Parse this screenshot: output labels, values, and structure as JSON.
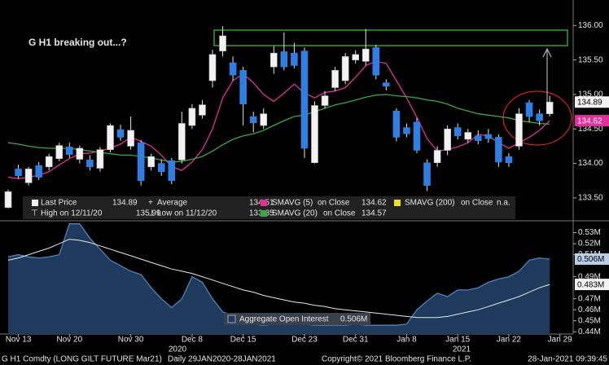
{
  "chart_data": [
    {
      "type": "candlestick",
      "title": "G H1 breaking out...?",
      "categories": [
        null,
        "Nov 13",
        null,
        null,
        null,
        null,
        "Nov 20",
        null,
        null,
        null,
        null,
        null,
        "Nov 30",
        null,
        null,
        null,
        null,
        null,
        "Dec 8",
        null,
        null,
        null,
        null,
        "Dec 15",
        null,
        null,
        null,
        null,
        null,
        "Dec 23",
        null,
        null,
        null,
        null,
        "Dec 31",
        null,
        null,
        null,
        null,
        "Jan 8",
        null,
        null,
        null,
        null,
        "Jan 15",
        null,
        null,
        null,
        null,
        "Jan 22",
        null,
        null,
        null,
        null,
        "Jan 29"
      ],
      "year_labels": [
        "2020",
        "2021"
      ],
      "open": [
        133.36,
        133.92,
        133.72,
        133.97,
        133.95,
        134.07,
        134.24,
        134.06,
        134.05,
        133.93,
        134.2,
        134.49,
        134.25,
        134.3,
        133.95,
        134.0,
        134.04,
        134.05,
        134.55,
        134.7,
        135.2,
        135.63,
        135.46,
        135.35,
        134.68,
        134.55,
        135.4,
        135.62,
        135.6,
        135.63,
        134.01,
        134.84,
        135.1,
        135.2,
        135.5,
        135.48,
        135.68,
        135.17,
        134.76,
        134.52,
        134.6,
        134.01,
        134.01,
        134.19,
        134.52,
        134.35,
        134.4,
        134.42,
        134.38,
        134.1,
        134.25,
        134.88,
        134.72,
        134.72,
        null
      ],
      "high": [
        133.62,
        133.98,
        133.95,
        134.02,
        134.14,
        134.3,
        134.3,
        134.26,
        134.12,
        134.24,
        134.58,
        134.56,
        134.68,
        134.34,
        134.14,
        134.06,
        134.08,
        134.75,
        134.86,
        134.92,
        135.65,
        135.99,
        135.55,
        135.4,
        134.75,
        134.8,
        135.7,
        135.9,
        135.75,
        135.68,
        134.9,
        135.05,
        135.4,
        135.6,
        135.64,
        135.95,
        135.72,
        135.22,
        134.8,
        134.58,
        134.66,
        134.06,
        134.25,
        134.55,
        134.58,
        134.5,
        134.48,
        134.5,
        134.42,
        134.15,
        134.8,
        134.92,
        134.78,
        134.98,
        null
      ],
      "low": [
        133.35,
        133.78,
        133.68,
        133.76,
        133.9,
        134.03,
        134.08,
        134.0,
        133.9,
        133.88,
        134.16,
        134.33,
        134.2,
        133.68,
        133.9,
        133.82,
        133.7,
        134.0,
        134.5,
        134.65,
        135.1,
        135.55,
        135.2,
        134.55,
        134.45,
        134.5,
        135.3,
        135.35,
        135.38,
        134.08,
        134.0,
        134.8,
        135.05,
        135.15,
        135.45,
        135.42,
        135.22,
        135.06,
        134.32,
        134.38,
        134.15,
        133.6,
        133.95,
        134.12,
        134.35,
        134.3,
        134.28,
        134.3,
        133.95,
        133.95,
        134.2,
        134.6,
        134.55,
        134.68,
        null
      ],
      "close": [
        133.59,
        133.82,
        133.92,
        133.8,
        134.1,
        134.26,
        134.13,
        134.22,
        133.95,
        134.2,
        134.55,
        134.38,
        134.48,
        133.75,
        134.1,
        133.88,
        133.75,
        134.58,
        134.8,
        134.85,
        135.58,
        135.85,
        135.28,
        134.86,
        134.59,
        134.72,
        135.6,
        135.4,
        135.42,
        134.22,
        134.84,
        134.98,
        135.35,
        135.55,
        135.58,
        135.66,
        135.28,
        135.12,
        134.38,
        134.43,
        134.19,
        133.68,
        134.19,
        134.5,
        134.4,
        134.45,
        134.33,
        134.36,
        134.02,
        134.01,
        134.72,
        134.68,
        134.62,
        134.89,
        null
      ],
      "up_color": "#f2f2f2",
      "down_color": "#2f7fe3",
      "series": [
        {
          "name": "SMAVG (5)",
          "basis": "on Close",
          "color": "#e0309a",
          "values": [
            133.8,
            133.78,
            133.8,
            133.83,
            133.88,
            133.98,
            134.07,
            134.14,
            134.15,
            134.18,
            134.22,
            134.28,
            134.38,
            134.32,
            134.25,
            134.12,
            133.95,
            133.9,
            134.02,
            134.2,
            134.5,
            134.95,
            135.2,
            135.3,
            135.17,
            135.0,
            134.9,
            135.02,
            135.15,
            135.02,
            134.95,
            135.03,
            135.05,
            135.1,
            135.25,
            135.42,
            135.48,
            135.45,
            135.2,
            134.95,
            134.67,
            134.36,
            134.18,
            134.2,
            134.24,
            134.3,
            134.42,
            134.4,
            134.3,
            134.22,
            134.3,
            134.38,
            134.48,
            134.62,
            null
          ]
        },
        {
          "name": "SMAVG (20)",
          "basis": "on Close",
          "color": "#3aa640",
          "values": [
            134.3,
            134.28,
            134.25,
            134.23,
            134.22,
            134.22,
            134.22,
            134.2,
            134.18,
            134.16,
            134.14,
            134.12,
            134.12,
            134.1,
            134.08,
            134.05,
            134.02,
            134.03,
            134.06,
            134.1,
            134.18,
            134.27,
            134.35,
            134.4,
            134.43,
            134.48,
            134.55,
            134.62,
            134.68,
            134.7,
            134.75,
            134.8,
            134.85,
            134.88,
            134.92,
            134.96,
            134.99,
            135.0,
            134.98,
            134.97,
            134.95,
            134.92,
            134.9,
            134.86,
            134.8,
            134.76,
            134.72,
            134.7,
            134.68,
            134.66,
            134.62,
            134.6,
            134.58,
            134.57,
            null
          ]
        },
        {
          "name": "SMAVG (200)",
          "basis": "on Close",
          "color": "#f2dc2a",
          "last_label": "n.a."
        }
      ],
      "stats": {
        "last_name": "Last Price",
        "average_name": "Average",
        "average": 134.51,
        "high_name": "High on 12/11/20",
        "low_name": "Low on 11/12/20"
      },
      "ylim": [
        133.18,
        136.37
      ],
      "yticks": [
        {
          "value": 133.5,
          "label": "133.50"
        },
        {
          "value": 134,
          "label": "134.00"
        },
        {
          "value": 134.5,
          "label": "134.50"
        },
        {
          "value": 135,
          "label": "135.00"
        },
        {
          "value": 135.5,
          "label": "135.50"
        },
        {
          "value": 136,
          "label": "136.00"
        }
      ]
    },
    {
      "type": "area",
      "series": [
        {
          "name": "Aggregate Open Interest",
          "color": "#1f3a5c",
          "edge_color": "#4f82b8",
          "last_label": "0.506M",
          "tag_color": "#b9cde6",
          "values": [
            0.508,
            0.51,
            0.508,
            0.507,
            0.508,
            0.51,
            0.538,
            0.538,
            0.525,
            0.515,
            0.505,
            0.5,
            0.495,
            0.492,
            0.48,
            0.47,
            0.462,
            0.47,
            0.49,
            0.485,
            0.47,
            0.458,
            0.455,
            0.45,
            0.447,
            0.446,
            0.447,
            0.448,
            0.447,
            0.447,
            0.446,
            0.446,
            0.446,
            0.446,
            0.447,
            0.446,
            0.446,
            0.446,
            0.446,
            0.447,
            0.46,
            0.468,
            0.475,
            0.472,
            0.478,
            0.478,
            0.48,
            0.485,
            0.488,
            0.49,
            0.495,
            0.505,
            0.507,
            0.506,
            null
          ]
        },
        {
          "color": "#e8e8e8",
          "last_label": "0.483M",
          "tag_color": "#f2f2f2",
          "values": [
            0.505,
            0.507,
            0.51,
            0.513,
            0.516,
            0.52,
            0.524,
            0.523,
            0.521,
            0.518,
            0.515,
            0.512,
            0.509,
            0.506,
            0.503,
            0.5,
            0.497,
            0.495,
            0.493,
            0.49,
            0.487,
            0.484,
            0.481,
            0.478,
            0.476,
            0.473,
            0.471,
            0.469,
            0.467,
            0.466,
            0.464,
            0.463,
            0.461,
            0.46,
            0.459,
            0.458,
            0.457,
            0.456,
            0.455,
            0.454,
            0.453,
            0.453,
            0.453,
            0.454,
            0.456,
            0.458,
            0.46,
            0.463,
            0.466,
            0.469,
            0.472,
            0.476,
            0.48,
            0.483,
            null
          ]
        }
      ],
      "ylim": [
        0.438,
        0.54
      ],
      "yticks": [
        {
          "value": 0.44,
          "label": "0.44M"
        },
        {
          "value": 0.45,
          "label": "0.45M"
        },
        {
          "value": 0.46,
          "label": "0.46M"
        },
        {
          "value": 0.47,
          "label": "0.47M"
        },
        {
          "value": 0.49,
          "label": "0.49M"
        },
        {
          "value": 0.51,
          "label": "0.51M"
        },
        {
          "value": 0.52,
          "label": "0.52M"
        },
        {
          "value": 0.53,
          "label": "0.53M"
        }
      ]
    }
  ],
  "footer": {
    "security": "G H1 Comdty (LONG GILT FUTURE Mar21)",
    "range": "Daily 29JAN2020-28JAN2021",
    "copyright": "Copyright© 2021 Bloomberg Finance L.P.",
    "timestamp": "28-Jan-2021 09:39:45"
  }
}
